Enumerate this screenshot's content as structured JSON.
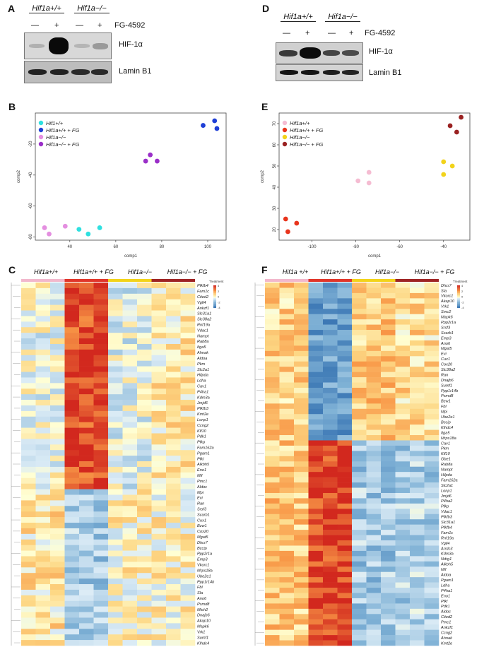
{
  "panels": {
    "A": {
      "label": "A",
      "groups": [
        "Hif1a+/+",
        "Hif1a−/−"
      ],
      "treatment": "FG-4592",
      "signs": [
        "—",
        "+",
        "—",
        "+"
      ],
      "bands": [
        "HIF-1α",
        "Lamin B1"
      ]
    },
    "D": {
      "label": "D",
      "groups": [
        "Hif1a+/+",
        "Hif1a−/−"
      ],
      "treatment": "FG-4592",
      "signs": [
        "—",
        "+",
        "—",
        "+"
      ],
      "bands": [
        "HIF-1α",
        "Lamin B1"
      ]
    },
    "B": {
      "label": "B"
    },
    "E": {
      "label": "E"
    },
    "C": {
      "label": "C",
      "headers": [
        "Hif1a+/+",
        "Hif1a+/+ + FG",
        "Hif1a−/−",
        "Hif1a−/− + FG"
      ]
    },
    "F": {
      "label": "F",
      "headers": [
        "Hif1a +/+",
        "Hif1a+/+ + FG",
        "Hif1a−/−",
        "Hif1a−/− + FG"
      ]
    }
  },
  "chart_data": [
    {
      "type": "scatter",
      "panel": "B",
      "xlabel": "comp1",
      "ylabel": "comp2",
      "xlim": [
        25,
        108
      ],
      "ylim": [
        -82,
        0
      ],
      "xticks": [
        40,
        60,
        80,
        100
      ],
      "yticks": [
        -20,
        -40,
        -60,
        -80
      ],
      "legend": [
        "Hif1+/+",
        "Hif1a+/+ + FG",
        "Hif1a−/−",
        "Hif1a−/− + FG"
      ],
      "series": [
        {
          "name": "Hif1+/+",
          "color": "#2fe0e0",
          "points": [
            [
              44,
              -75
            ],
            [
              48,
              -78
            ],
            [
              53,
              -74
            ]
          ]
        },
        {
          "name": "Hif1a+/+ + FG",
          "color": "#1f3fd6",
          "points": [
            [
              98,
              -8
            ],
            [
              103,
              -5
            ],
            [
              104,
              -10
            ]
          ]
        },
        {
          "name": "Hif1a−/−",
          "color": "#e48fe0",
          "points": [
            [
              29,
              -74
            ],
            [
              31,
              -78
            ],
            [
              38,
              -73
            ]
          ]
        },
        {
          "name": "Hif1a−/− + FG",
          "color": "#9a2fc8",
          "points": [
            [
              73,
              -31
            ],
            [
              75,
              -27
            ],
            [
              78,
              -31
            ]
          ]
        }
      ]
    },
    {
      "type": "scatter",
      "panel": "E",
      "xlabel": "comp1",
      "ylabel": "comp2",
      "xlim": [
        -115,
        -28
      ],
      "ylim": [
        15,
        75
      ],
      "xticks": [
        -100,
        -80,
        -60,
        -40
      ],
      "yticks": [
        20,
        30,
        40,
        50,
        60,
        70
      ],
      "legend": [
        "Hif1a+/+",
        "Hif1a+/+ + FG",
        "Hif1a−/−",
        "Hif1a−/− + FG"
      ],
      "series": [
        {
          "name": "Hif1a+/+",
          "color": "#f5bcd2",
          "points": [
            [
              -79,
              43
            ],
            [
              -74,
              47
            ],
            [
              -74,
              42
            ]
          ]
        },
        {
          "name": "Hif1a+/+ + FG",
          "color": "#e8341c",
          "points": [
            [
              -112,
              25
            ],
            [
              -111,
              19
            ],
            [
              -107,
              23
            ]
          ]
        },
        {
          "name": "Hif1a−/−",
          "color": "#f2d31a",
          "points": [
            [
              -40,
              52
            ],
            [
              -40,
              46
            ],
            [
              -36,
              50
            ]
          ]
        },
        {
          "name": "Hif1a−/− + FG",
          "color": "#9a2222",
          "points": [
            [
              -37,
              69
            ],
            [
              -34,
              66
            ],
            [
              -32,
              73
            ]
          ]
        }
      ]
    }
  ],
  "heatmapC": {
    "legend_title": "Treatment",
    "scale": [
      "4",
      "2",
      "0",
      "-2",
      "-4"
    ],
    "genes": [
      "Pfkfb4",
      "Fam1c",
      "Cited2",
      "Vgll4",
      "Ankzf1",
      "Slc31a1",
      "Slc38a2",
      "Rnf19a",
      "Vdac1",
      "Nampt",
      "Rab8a",
      "Itga5",
      "Ahnak",
      "Aldoa",
      "Pkm",
      "Slc2a1",
      "Hilpda",
      "Ldha",
      "Cav1",
      "P4ha1",
      "Kdm3a",
      "Jmjd6",
      "Pfkfb3",
      "Kmt2e",
      "Lonp1",
      "Ccng2",
      "Klf10",
      "Pdk1",
      "Pfkp",
      "Fam162a",
      "Pgam1",
      "Pfkl",
      "Alkbh5",
      "Eno1",
      "Mif",
      "Pmc1",
      "Aldoc",
      "Mpi",
      "Evi",
      "Ran",
      "Srsf3",
      "Scarb1",
      "Cux1",
      "Bzw1",
      "Cox20",
      "Mgat5",
      "Dhcr7",
      "Bccip",
      "Ppp2r1a",
      "Emp3",
      "Vkorc1",
      "Mrps18a",
      "Ube2e1",
      "Ppp1r14b",
      "Fbl",
      "Sla",
      "Ano6",
      "Psmd8",
      "Mtch2",
      "Dnajb6",
      "Akap10",
      "Mapk6",
      "Vrk1",
      "Sumf1",
      "Klhdc4"
    ]
  },
  "heatmapF": {
    "legend_title": "Treatment",
    "scale": [
      "4",
      "2",
      "0",
      "-2",
      "-4"
    ],
    "genes": [
      "Dhcr7",
      "Sla",
      "Vkorc1",
      "Akap10",
      "Vrk1",
      "Smc2",
      "Mapk6",
      "Ppp2r1a",
      "Srsf3",
      "Scarb1",
      "Emp3",
      "Ano6",
      "Mgat5",
      "Evi",
      "Cux1",
      "Cox20",
      "Slc38a2",
      "Ran",
      "Dnajb6",
      "Sumf1",
      "Ppp1r14b",
      "Psmd8",
      "Bzw1",
      "Fbl",
      "Mpi",
      "Ube2e1",
      "Bccip",
      "Klhdc4",
      "Itga5",
      "Mrps18a",
      "Cav1",
      "Pkm",
      "Klf10",
      "Gbe1",
      "Rab8a",
      "Nampt",
      "Hilpda",
      "Fam162a",
      "Slc2a1",
      "Lonp1",
      "Jmjd6",
      "P4ha2",
      "Pfkp",
      "Vdac1",
      "Pfkfb3",
      "Slc31a1",
      "Pfkfb4",
      "Fam1c",
      "Rnf19a",
      "Vgll4",
      "Arrdc3",
      "Kdm3a",
      "Ndrg1",
      "Alkbh5",
      "Mif",
      "Aldoa",
      "Pgam1",
      "Ldha",
      "P4ha1",
      "Eno1",
      "Pfkl",
      "Pdk1",
      "Aldoc",
      "Cited2",
      "Pmc1",
      "Ankzf1",
      "Ccng2",
      "Ahnak",
      "Kmt2e"
    ]
  }
}
